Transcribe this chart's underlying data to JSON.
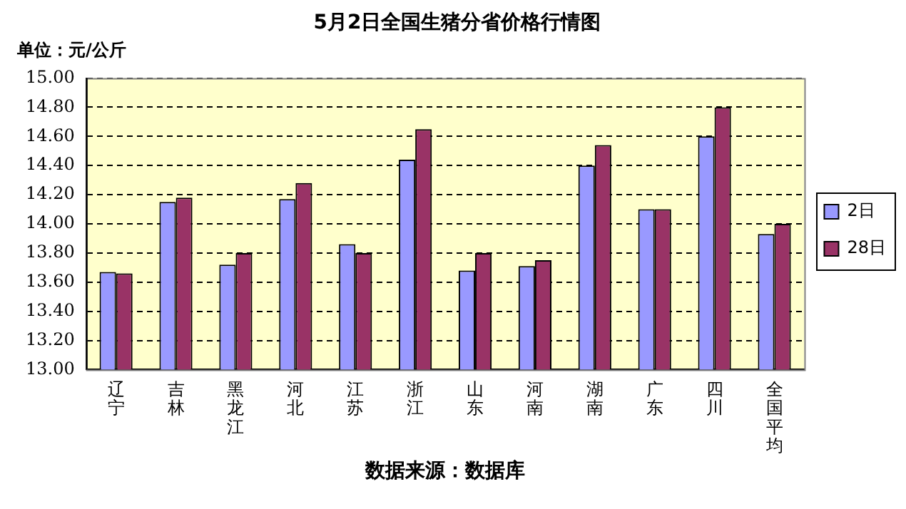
{
  "chart_data": {
    "type": "bar",
    "title": "5月2日全国生猪分省价格行情图",
    "ylabel": "单位：元/公斤",
    "categories": [
      "辽宁",
      "吉林",
      "黑龙江",
      "河北",
      "江苏",
      "浙江",
      "山东",
      "河南",
      "湖南",
      "广东",
      "四川",
      "全国平均"
    ],
    "series": [
      {
        "name": "2日",
        "color": "#9999ff",
        "values": [
          13.67,
          14.15,
          13.72,
          14.17,
          13.86,
          14.44,
          13.68,
          13.71,
          14.4,
          14.1,
          14.6,
          13.93
        ]
      },
      {
        "name": "28日",
        "color": "#993366",
        "values": [
          13.66,
          14.18,
          13.8,
          14.28,
          13.8,
          14.65,
          13.8,
          13.75,
          14.54,
          14.1,
          14.8,
          14.0
        ]
      }
    ],
    "ylim": [
      13.0,
      15.0
    ],
    "yticks": [
      {
        "value": 13.0,
        "label": "13.00"
      },
      {
        "value": 13.2,
        "label": "13.20"
      },
      {
        "value": 13.4,
        "label": "13.40"
      },
      {
        "value": 13.6,
        "label": "13.60"
      },
      {
        "value": 13.8,
        "label": "13.80"
      },
      {
        "value": 14.0,
        "label": "14.00"
      },
      {
        "value": 14.2,
        "label": "14.20"
      },
      {
        "value": 14.4,
        "label": "14.40"
      },
      {
        "value": 14.6,
        "label": "14.60"
      },
      {
        "value": 14.8,
        "label": "14.80"
      },
      {
        "value": 15.0,
        "label": "15.00"
      }
    ],
    "grid": "y",
    "line_style": "dashed",
    "legend": "right",
    "annotations": [
      "数据来源：数据库"
    ]
  }
}
